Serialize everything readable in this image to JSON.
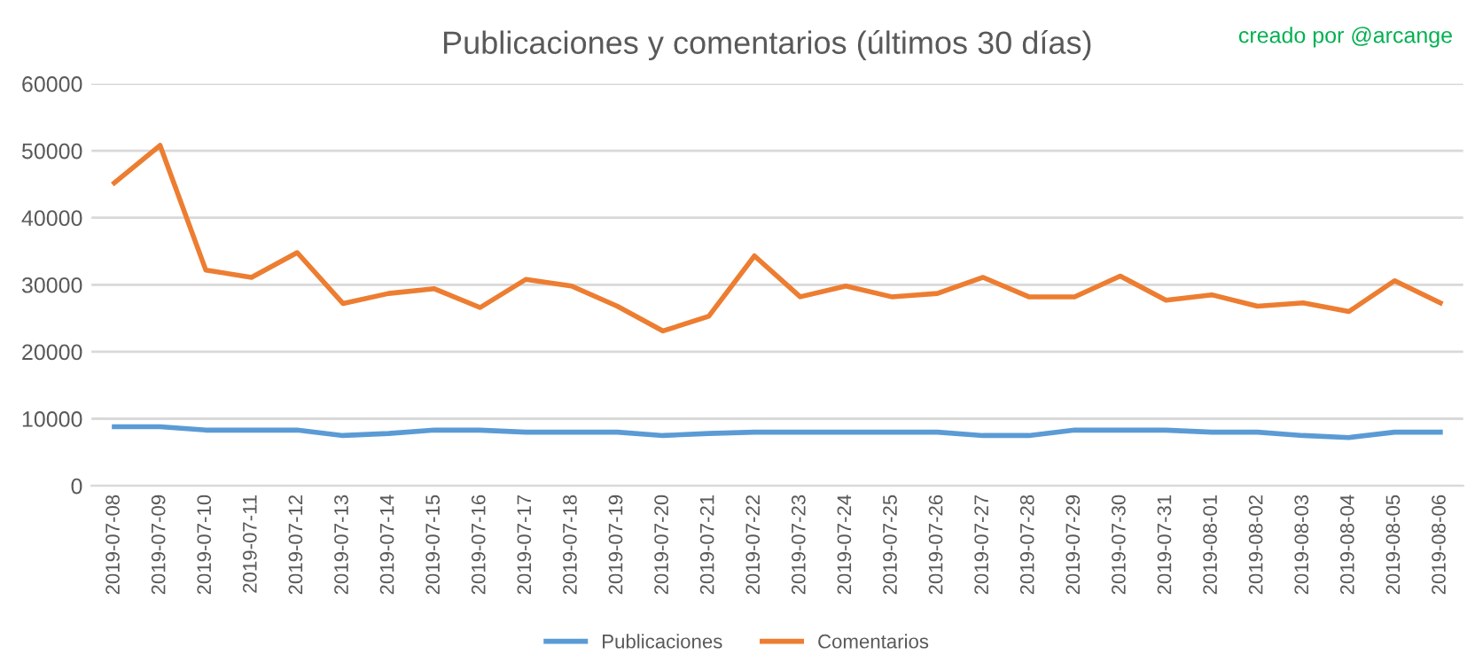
{
  "chart_data": {
    "type": "line",
    "title": "Publicaciones y comentarios (últimos 30 días)",
    "annotations": [
      "creado por @arcange"
    ],
    "categories": [
      "2019-07-08",
      "2019-07-09",
      "2019-07-10",
      "2019-07-11",
      "2019-07-12",
      "2019-07-13",
      "2019-07-14",
      "2019-07-15",
      "2019-07-16",
      "2019-07-17",
      "2019-07-18",
      "2019-07-19",
      "2019-07-20",
      "2019-07-21",
      "2019-07-22",
      "2019-07-23",
      "2019-07-24",
      "2019-07-25",
      "2019-07-26",
      "2019-07-27",
      "2019-07-28",
      "2019-07-29",
      "2019-07-30",
      "2019-07-31",
      "2019-08-01",
      "2019-08-02",
      "2019-08-03",
      "2019-08-04",
      "2019-08-05",
      "2019-08-06"
    ],
    "series": [
      {
        "name": "Publicaciones",
        "color": "#5b9bd5",
        "values": [
          8800,
          8800,
          8300,
          8300,
          8300,
          7500,
          7800,
          8300,
          8300,
          8000,
          8000,
          8000,
          7500,
          7800,
          8000,
          8000,
          8000,
          8000,
          8000,
          7500,
          7500,
          8300,
          8300,
          8300,
          8000,
          8000,
          7500,
          7200,
          8000,
          8000
        ]
      },
      {
        "name": "Comentarios",
        "color": "#ed7d31",
        "values": [
          45200,
          50800,
          32200,
          31100,
          34800,
          27200,
          28700,
          29400,
          26600,
          30800,
          29800,
          26800,
          23100,
          25300,
          34300,
          28200,
          29800,
          28200,
          28700,
          31100,
          28200,
          28200,
          31300,
          27700,
          28500,
          26800,
          27300,
          26000,
          30600,
          27300
        ]
      }
    ],
    "ylim": [
      0,
      60000
    ],
    "yticks": [
      0,
      10000,
      20000,
      30000,
      40000,
      50000,
      60000
    ],
    "grid": "y",
    "legend": "bottom",
    "marker": "none",
    "line_style": "solid"
  }
}
